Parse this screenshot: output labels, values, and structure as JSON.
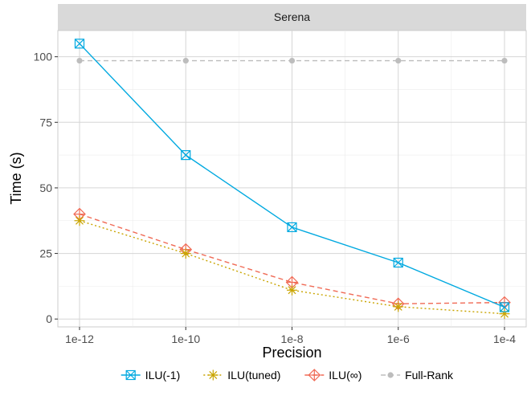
{
  "chart_data": {
    "type": "line",
    "panel_title": "Serena",
    "xlabel": "Precision",
    "ylabel": "Time (s)",
    "categories": [
      "1e-12",
      "1e-10",
      "1e-8",
      "1e-6",
      "1e-4"
    ],
    "y_ticks": [
      0,
      25,
      50,
      75,
      100
    ],
    "ylim": [
      -3,
      110
    ],
    "grid": true,
    "legend_position": "bottom",
    "series": [
      {
        "name": "ILU(-1)",
        "values": [
          105,
          62.5,
          35,
          21.5,
          4.5
        ],
        "color": "#00a9e0",
        "line": "solid",
        "marker": "square-x"
      },
      {
        "name": "ILU(tuned)",
        "values": [
          37.5,
          25,
          11,
          4.7,
          2
        ],
        "color": "#c9a400",
        "line": "dotted",
        "marker": "asterisk"
      },
      {
        "name": "ILU(∞)",
        "values": [
          40,
          26.5,
          14,
          5.8,
          6.3
        ],
        "color": "#f06a55",
        "line": "dashed",
        "marker": "diamond-plus"
      },
      {
        "name": "Full-Rank",
        "values": [
          98.5,
          98.5,
          98.5,
          98.5,
          98.5
        ],
        "color": "#bdbdbd",
        "line": "dashed",
        "marker": "dot"
      }
    ]
  }
}
